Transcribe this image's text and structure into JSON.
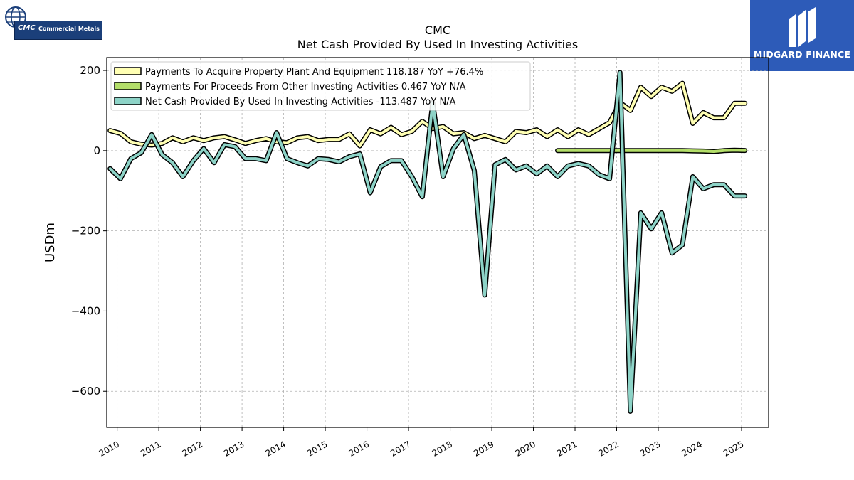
{
  "logos": {
    "left_label": "CMC",
    "left_name": "Commercial Metals",
    "right_name": "MIDGARD FINANCE"
  },
  "chart_data": {
    "type": "line",
    "title": "CMC",
    "subtitle": "Net Cash Provided By Used In Investing Activities",
    "ylabel": "USDm",
    "xlabel": "",
    "xlim": [
      2009.75,
      2025.65
    ],
    "ylim": [
      -690,
      232
    ],
    "x_ticks": [
      2010,
      2011,
      2012,
      2013,
      2014,
      2015,
      2016,
      2017,
      2018,
      2019,
      2020,
      2021,
      2022,
      2023,
      2024,
      2025
    ],
    "y_ticks": [
      200,
      0,
      -200,
      -400,
      -600
    ],
    "y_tick_labels": [
      "200",
      "0",
      "−200",
      "−400",
      "−600"
    ],
    "grid": true,
    "legend_position": "top-left",
    "series": [
      {
        "name": "Payments To Acquire Property Plant And Equipment",
        "legend": "Payments To Acquire Property Plant And Equipment  118.187 YoY +76.4%",
        "color": "#ffffb3",
        "x": [
          2009.83,
          2010.08,
          2010.33,
          2010.58,
          2010.83,
          2011.08,
          2011.33,
          2011.58,
          2011.83,
          2012.08,
          2012.33,
          2012.58,
          2012.83,
          2013.08,
          2013.33,
          2013.58,
          2013.83,
          2014.08,
          2014.33,
          2014.58,
          2014.83,
          2015.08,
          2015.33,
          2015.58,
          2015.83,
          2016.08,
          2016.33,
          2016.58,
          2016.83,
          2017.08,
          2017.33,
          2017.58,
          2017.83,
          2018.08,
          2018.33,
          2018.58,
          2018.83,
          2019.08,
          2019.33,
          2019.58,
          2019.83,
          2020.08,
          2020.33,
          2020.58,
          2020.83,
          2021.08,
          2021.33,
          2021.58,
          2021.83,
          2022.08,
          2022.33,
          2022.58,
          2022.83,
          2023.08,
          2023.33,
          2023.58,
          2023.83,
          2024.08,
          2024.33,
          2024.58,
          2024.83,
          2025.08
        ],
        "y": [
          50,
          43,
          22,
          16,
          14,
          18,
          32,
          22,
          32,
          25,
          32,
          35,
          27,
          18,
          25,
          30,
          22,
          20,
          32,
          35,
          25,
          28,
          28,
          42,
          12,
          52,
          42,
          58,
          40,
          48,
          73,
          55,
          60,
          42,
          45,
          30,
          38,
          30,
          22,
          48,
          45,
          52,
          35,
          52,
          35,
          52,
          40,
          55,
          70,
          120,
          100,
          158,
          135,
          158,
          148,
          168,
          68,
          95,
          82,
          82,
          118,
          118
        ]
      },
      {
        "name": "Payments For Proceeds From Other Investing Activities",
        "legend": "Payments For Proceeds From Other Investing Activities  0.467 YoY N/A",
        "color": "#b3de69",
        "x": [
          2020.58,
          2020.83,
          2021.08,
          2021.33,
          2021.58,
          2021.83,
          2022.08,
          2022.33,
          2022.58,
          2022.83,
          2023.08,
          2023.33,
          2023.58,
          2023.83,
          2024.08,
          2024.33,
          2024.58,
          2024.83,
          2025.08
        ],
        "y": [
          0,
          0,
          0,
          0,
          0,
          0,
          0,
          0,
          0,
          0,
          0,
          0,
          0,
          -0.5,
          -1,
          -2,
          0,
          1,
          0.5
        ]
      },
      {
        "name": "Net Cash Provided By Used In Investing Activities",
        "legend": "Net Cash Provided By Used In Investing Activities  -113.487 YoY N/A",
        "color": "#8dd3c7",
        "x": [
          2009.83,
          2010.08,
          2010.33,
          2010.58,
          2010.83,
          2011.08,
          2011.33,
          2011.58,
          2011.83,
          2012.08,
          2012.33,
          2012.58,
          2012.83,
          2013.08,
          2013.33,
          2013.58,
          2013.83,
          2014.08,
          2014.33,
          2014.58,
          2014.83,
          2015.08,
          2015.33,
          2015.58,
          2015.83,
          2016.08,
          2016.33,
          2016.58,
          2016.83,
          2017.08,
          2017.33,
          2017.58,
          2017.83,
          2018.08,
          2018.33,
          2018.58,
          2018.83,
          2019.08,
          2019.33,
          2019.58,
          2019.83,
          2020.08,
          2020.33,
          2020.58,
          2020.83,
          2021.08,
          2021.33,
          2021.58,
          2021.83,
          2022.08,
          2022.33,
          2022.58,
          2022.83,
          2023.08,
          2023.33,
          2023.58,
          2023.83,
          2024.08,
          2024.33,
          2024.58,
          2024.83,
          2025.08
        ],
        "y": [
          -45,
          -70,
          -20,
          -5,
          40,
          -10,
          -30,
          -65,
          -25,
          5,
          -30,
          15,
          10,
          -20,
          -20,
          -25,
          45,
          -20,
          -30,
          -38,
          -20,
          -22,
          -28,
          -15,
          -8,
          -105,
          -40,
          -25,
          -25,
          -65,
          -115,
          120,
          -65,
          5,
          40,
          -50,
          -360,
          -35,
          -22,
          -48,
          -38,
          -58,
          -38,
          -65,
          -38,
          -32,
          -38,
          -60,
          -70,
          195,
          -650,
          -155,
          -195,
          -155,
          -255,
          -235,
          -65,
          -95,
          -85,
          -85,
          -113,
          -113
        ]
      }
    ]
  }
}
